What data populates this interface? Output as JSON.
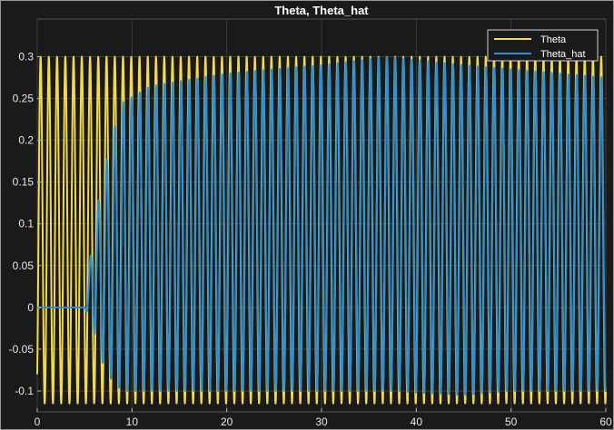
{
  "chart_data": {
    "type": "line",
    "title": "Theta, Theta_hat",
    "xlabel": "",
    "ylabel": "",
    "xlim": [
      0,
      60
    ],
    "ylim": [
      -0.125,
      0.345
    ],
    "x_ticks": [
      0,
      10,
      20,
      30,
      40,
      50,
      60
    ],
    "x_tick_labels": [
      "0",
      "10",
      "20",
      "30",
      "40",
      "50",
      "60"
    ],
    "y_ticks": [
      0.3,
      0.25,
      0.2,
      0.15,
      0.1,
      0.05,
      0,
      -0.05,
      -0.1
    ],
    "y_tick_labels": [
      "0.3",
      "0.25",
      "0.2",
      "0.15",
      "0.1",
      "0.05",
      "0",
      "-0.05",
      "-0.1"
    ],
    "grid": true,
    "legend_position": "top-right",
    "background_color": "#1a1a1a",
    "series": [
      {
        "name": "Theta",
        "color": "#f2d94e",
        "description_of_shape": "oscillation of about 1.15 cycles per second between roughly -0.115 and 0.30",
        "key_values": {
          "period": 0.87,
          "max": 0.3,
          "min": -0.115,
          "start_value": -0.08
        }
      },
      {
        "name": "Theta_hat",
        "color": "#2d8fd6",
        "description_of_shape": "flat at 0 until about t=5, grows and locks onto Theta, then oscillates with slowly varying amplitude",
        "key_values": {
          "flat_until": 5.0,
          "envelope_times": [
            0,
            5,
            6,
            7,
            8,
            9,
            12,
            20,
            30,
            37,
            45,
            50,
            55,
            60
          ],
          "envelope_max": [
            0,
            0,
            0.1,
            0.16,
            0.21,
            0.245,
            0.265,
            0.28,
            0.29,
            0.3,
            0.29,
            0.285,
            0.28,
            0.275
          ],
          "envelope_min": [
            0,
            0,
            -0.03,
            -0.07,
            -0.09,
            -0.1,
            -0.1,
            -0.1,
            -0.1,
            -0.1,
            -0.105,
            -0.1,
            -0.1,
            -0.1
          ]
        }
      }
    ]
  }
}
